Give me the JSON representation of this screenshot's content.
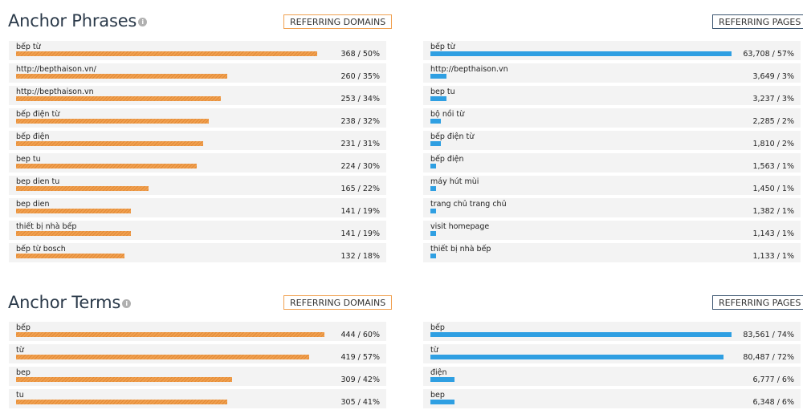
{
  "phrases": {
    "title": "Anchor Phrases",
    "info_icon": "info-icon",
    "domains_tab": "REFERRING DOMAINS",
    "pages_tab": "REFERRING PAGES",
    "domains": [
      {
        "label": "bếp từ",
        "value": "368 / 50%",
        "fraction": 0.5
      },
      {
        "label": "http://bepthaison.vn/",
        "value": "260 / 35%",
        "fraction": 0.35
      },
      {
        "label": "http://bepthaison.vn",
        "value": "253 / 34%",
        "fraction": 0.34
      },
      {
        "label": "bếp điện từ",
        "value": "238 / 32%",
        "fraction": 0.32
      },
      {
        "label": "bếp điện",
        "value": "231 / 31%",
        "fraction": 0.31
      },
      {
        "label": "bep tu",
        "value": "224 / 30%",
        "fraction": 0.3
      },
      {
        "label": "bep dien tu",
        "value": "165 / 22%",
        "fraction": 0.22
      },
      {
        "label": "bep dien",
        "value": "141 / 19%",
        "fraction": 0.19
      },
      {
        "label": "thiết bị nhà bếp",
        "value": "141 / 19%",
        "fraction": 0.19
      },
      {
        "label": "bếp từ bosch",
        "value": "132 / 18%",
        "fraction": 0.18
      }
    ],
    "pages": [
      {
        "label": "bếp từ",
        "value": "63,708 / 57%",
        "fraction": 0.57
      },
      {
        "label": "http://bepthaison.vn",
        "value": "3,649 / 3%",
        "fraction": 0.03
      },
      {
        "label": "bep tu",
        "value": "3,237 / 3%",
        "fraction": 0.03
      },
      {
        "label": "bộ nồi từ",
        "value": "2,285 / 2%",
        "fraction": 0.02
      },
      {
        "label": "bếp điện từ",
        "value": "1,810 / 2%",
        "fraction": 0.02
      },
      {
        "label": "bếp điện",
        "value": "1,563 / 1%",
        "fraction": 0.01
      },
      {
        "label": "máy hút mùi",
        "value": "1,450 / 1%",
        "fraction": 0.01
      },
      {
        "label": "trang chủ trang chủ",
        "value": "1,382 / 1%",
        "fraction": 0.01
      },
      {
        "label": "visit homepage",
        "value": "1,143 / 1%",
        "fraction": 0.01
      },
      {
        "label": "thiết bị nhà bếp",
        "value": "1,133 / 1%",
        "fraction": 0.01
      }
    ]
  },
  "terms": {
    "title": "Anchor Terms",
    "info_icon": "info-icon",
    "domains_tab": "REFERRING DOMAINS",
    "pages_tab": "REFERRING PAGES",
    "domains": [
      {
        "label": "bếp",
        "value": "444 / 60%",
        "fraction": 0.6
      },
      {
        "label": "từ",
        "value": "419 / 57%",
        "fraction": 0.57
      },
      {
        "label": "bep",
        "value": "309 / 42%",
        "fraction": 0.42
      },
      {
        "label": "tu",
        "value": "305 / 41%",
        "fraction": 0.41
      }
    ],
    "pages": [
      {
        "label": "bếp",
        "value": "83,561 / 74%",
        "fraction": 0.74
      },
      {
        "label": "từ",
        "value": "80,487 / 72%",
        "fraction": 0.72
      },
      {
        "label": "điện",
        "value": "6,777 / 6%",
        "fraction": 0.06
      },
      {
        "label": "bep",
        "value": "6,348 / 6%",
        "fraction": 0.06
      }
    ]
  },
  "colors": {
    "domains_bar": "#f0a050",
    "pages_bar": "#2f9fe2",
    "row_bg": "#f3f3f3",
    "heading": "#2b3a4a"
  }
}
